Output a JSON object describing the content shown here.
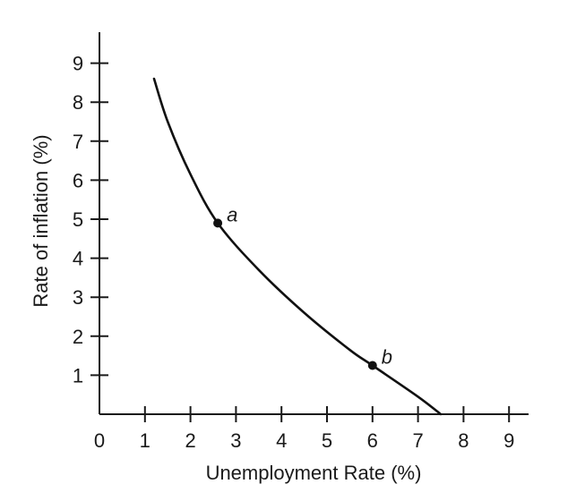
{
  "chart_data": {
    "type": "line",
    "title": "",
    "xlabel": "Unemployment Rate (%)",
    "ylabel": "Rate of inflation (%)",
    "xlim": [
      0,
      9
    ],
    "ylim": [
      0,
      9
    ],
    "x_ticks": [
      1,
      2,
      3,
      4,
      5,
      6,
      7,
      8,
      9
    ],
    "x_tick_labels": [
      "1",
      "2",
      "3",
      "4",
      "5",
      "6",
      "7",
      "8",
      "9"
    ],
    "y_ticks": [
      1,
      2,
      3,
      4,
      5,
      6,
      7,
      8,
      9
    ],
    "y_tick_labels": [
      "1",
      "2",
      "3",
      "4",
      "5",
      "6",
      "7",
      "8",
      "9"
    ],
    "origin_label": "0",
    "grid": false,
    "legend": "none",
    "line_color": "#111111",
    "series": [
      {
        "points": [
          [
            1.2,
            8.6
          ],
          [
            1.5,
            7.5
          ],
          [
            2.0,
            6.15
          ],
          [
            2.6,
            4.9
          ],
          [
            3.5,
            3.7
          ],
          [
            4.5,
            2.6
          ],
          [
            5.5,
            1.65
          ],
          [
            6.0,
            1.25
          ],
          [
            7.0,
            0.45
          ],
          [
            7.5,
            0.0
          ]
        ]
      }
    ],
    "annotations": [
      {
        "label": "a",
        "x": 2.6,
        "y": 4.9
      },
      {
        "label": "b",
        "x": 6.0,
        "y": 1.25
      }
    ]
  }
}
